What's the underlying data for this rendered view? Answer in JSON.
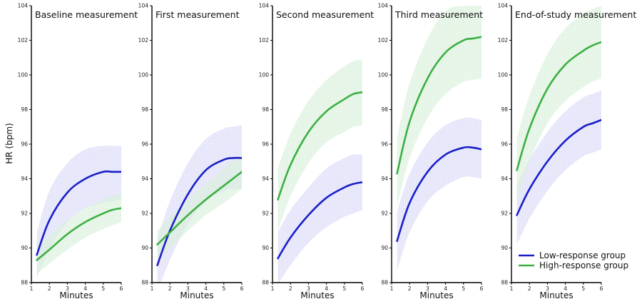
{
  "chart_data": {
    "type": "line",
    "ylabel": "HR (bpm)",
    "xlabel": "Minutes",
    "xlim": [
      1,
      6
    ],
    "ylim": [
      88,
      104
    ],
    "x_ticks": [
      1,
      2,
      3,
      4,
      5,
      6
    ],
    "y_ticks": [
      88,
      90,
      92,
      94,
      96,
      98,
      100,
      102,
      104
    ],
    "legend": {
      "placement": "bottom-right",
      "entries": [
        "Low-response group",
        "High-response group"
      ]
    },
    "colors": {
      "low": "#1a1fc8",
      "high": "#3cb043",
      "low_band": "#d8d8f8",
      "high_band": "#d7efd9"
    },
    "x": [
      1.3,
      2,
      3,
      4,
      5,
      5.5,
      6
    ],
    "panels": [
      {
        "title": "Baseline measurement",
        "series": [
          {
            "name": "Low-response group",
            "values": [
              89.6,
              91.6,
              93.2,
              94.0,
              94.4,
              94.4,
              94.4
            ],
            "band_lower": [
              88.3,
              89.9,
              91.5,
              92.3,
              92.6,
              92.7,
              92.8
            ],
            "band_upper": [
              90.9,
              93.3,
              94.9,
              95.7,
              95.9,
              95.9,
              95.9
            ]
          },
          {
            "name": "High-response group",
            "values": [
              89.3,
              89.9,
              90.8,
              91.5,
              92.0,
              92.2,
              92.3
            ],
            "band_lower": [
              88.5,
              89.1,
              89.9,
              90.6,
              91.1,
              91.3,
              91.5
            ],
            "band_upper": [
              90.1,
              90.7,
              91.6,
              92.3,
              92.8,
              93.0,
              93.2
            ]
          }
        ]
      },
      {
        "title": "First measurement",
        "series": [
          {
            "name": "Low-response group",
            "values": [
              89.0,
              91.0,
              93.1,
              94.5,
              95.1,
              95.2,
              95.2
            ],
            "band_lower": [
              87.5,
              89.3,
              91.4,
              92.7,
              93.3,
              93.4,
              93.4
            ],
            "band_upper": [
              90.5,
              92.7,
              94.9,
              96.3,
              96.9,
              97.0,
              97.1
            ]
          },
          {
            "name": "High-response group",
            "values": [
              90.2,
              90.9,
              91.9,
              92.8,
              93.6,
              94.0,
              94.4
            ],
            "band_lower": [
              89.4,
              90.0,
              91.0,
              91.9,
              92.6,
              93.0,
              93.4
            ],
            "band_upper": [
              91.0,
              91.8,
              92.8,
              93.7,
              94.6,
              95.0,
              95.4
            ]
          }
        ]
      },
      {
        "title": "Second measurement",
        "series": [
          {
            "name": "Low-response group",
            "values": [
              89.4,
              90.6,
              91.9,
              92.9,
              93.5,
              93.7,
              93.8
            ],
            "band_lower": [
              87.9,
              89.0,
              90.3,
              91.2,
              91.8,
              92.0,
              92.2
            ],
            "band_upper": [
              90.9,
              92.2,
              93.5,
              94.6,
              95.2,
              95.4,
              95.4
            ]
          },
          {
            "name": "High-response group",
            "values": [
              92.8,
              94.8,
              96.7,
              97.9,
              98.6,
              98.9,
              99.0
            ],
            "band_lower": [
              91.0,
              93.0,
              94.9,
              96.1,
              96.7,
              97.0,
              97.1
            ],
            "band_upper": [
              94.6,
              96.6,
              98.5,
              99.7,
              100.5,
              100.8,
              100.9
            ]
          }
        ]
      },
      {
        "title": "Third measurement",
        "series": [
          {
            "name": "Low-response group",
            "values": [
              90.4,
              92.6,
              94.4,
              95.4,
              95.8,
              95.8,
              95.7
            ],
            "band_lower": [
              88.7,
              90.9,
              92.7,
              93.6,
              94.1,
              94.1,
              94.0
            ],
            "band_upper": [
              92.1,
              94.3,
              96.1,
              97.1,
              97.5,
              97.5,
              97.4
            ]
          },
          {
            "name": "High-response group",
            "values": [
              94.3,
              97.3,
              99.8,
              101.3,
              102.0,
              102.1,
              102.2
            ],
            "band_lower": [
              92.4,
              95.2,
              97.5,
              98.9,
              99.6,
              99.7,
              99.8
            ],
            "band_upper": [
              96.4,
              99.5,
              102.1,
              103.7,
              104.0,
              104.0,
              104.0
            ]
          }
        ]
      },
      {
        "title": "End-of-study measurement",
        "series": [
          {
            "name": "Low-response group",
            "values": [
              91.9,
              93.4,
              95.0,
              96.2,
              97.0,
              97.2,
              97.4
            ],
            "band_lower": [
              90.2,
              91.7,
              93.3,
              94.5,
              95.3,
              95.5,
              95.7
            ],
            "band_upper": [
              93.6,
              95.1,
              96.7,
              97.9,
              98.7,
              98.9,
              99.1
            ]
          },
          {
            "name": "High-response group",
            "values": [
              94.5,
              96.9,
              99.2,
              100.6,
              101.4,
              101.7,
              101.9
            ],
            "band_lower": [
              92.6,
              95.0,
              97.2,
              98.5,
              99.3,
              99.6,
              99.8
            ],
            "band_upper": [
              96.4,
              98.8,
              101.2,
              102.7,
              103.5,
              103.8,
              104.0
            ]
          }
        ]
      }
    ]
  }
}
